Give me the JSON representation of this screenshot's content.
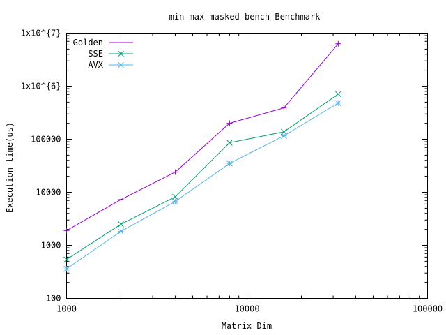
{
  "chart_data": {
    "type": "line",
    "title": "min-max-masked-bench Benchmark",
    "xlabel": "Matrix Dim",
    "ylabel": "Execution time(us)",
    "x_scale": "log",
    "y_scale": "log",
    "xlim": [
      1000,
      100000
    ],
    "ylim": [
      100,
      10000000
    ],
    "grid": false,
    "legend_position": "top-left",
    "x_ticks": [
      {
        "value": 1000,
        "label": "1000"
      },
      {
        "value": 10000,
        "label": "10000"
      },
      {
        "value": 100000,
        "label": "100000"
      }
    ],
    "y_ticks": [
      {
        "value": 100,
        "label": "100"
      },
      {
        "value": 1000,
        "label": "1000"
      },
      {
        "value": 10000,
        "label": "10000"
      },
      {
        "value": 100000,
        "label": "100000"
      },
      {
        "value": 1000000,
        "label": "1x10^{6}"
      },
      {
        "value": 10000000,
        "label": "1x10^{7}"
      }
    ],
    "x": [
      1000,
      2000,
      4000,
      8000,
      16000,
      32000
    ],
    "series": [
      {
        "name": "Golden",
        "color": "#9400d3",
        "marker": "plus",
        "values": [
          1900,
          7300,
          24000,
          200000,
          390000,
          6300000
        ]
      },
      {
        "name": "SSE",
        "color": "#009e73",
        "marker": "cross",
        "values": [
          540,
          2500,
          8200,
          86000,
          138000,
          710000
        ]
      },
      {
        "name": "AVX",
        "color": "#56b4e9",
        "marker": "star",
        "values": [
          360,
          1830,
          6700,
          35000,
          116000,
          480000
        ]
      }
    ]
  }
}
